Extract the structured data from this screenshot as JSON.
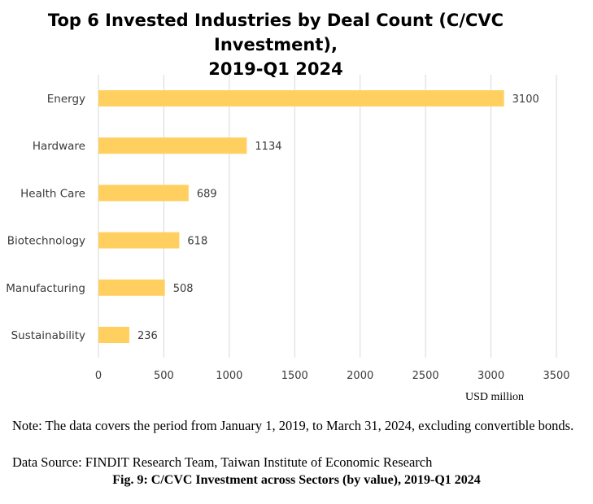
{
  "chart_data": {
    "type": "bar",
    "orientation": "horizontal",
    "title_lines": [
      "Top 6 Invested Industries by Deal Count (C/CVC Investment),",
      "2019-Q1 2024"
    ],
    "categories": [
      "Energy",
      "Hardware",
      "Health Care",
      "Biotechnology",
      "Manufacturing",
      "Sustainability"
    ],
    "values": [
      3100,
      1134,
      689,
      618,
      508,
      236
    ],
    "value_labels": [
      "3100",
      "1134",
      "689",
      "618",
      "508",
      "236"
    ],
    "x_ticks": [
      0,
      500,
      1000,
      1500,
      2000,
      2500,
      3000,
      3500
    ],
    "xlim": [
      0,
      3500
    ],
    "xlabel": "USD million",
    "ylabel": "",
    "grid": "vertical",
    "legend": "none",
    "bar_color": "#FFD05F",
    "grid_color": "#D9D9D9"
  },
  "note": "Note: The data covers the period from January 1, 2019, to March 31, 2024, excluding convertible bonds.",
  "source": "Data Source: FINDIT Research Team, Taiwan Institute of Economic Research",
  "figure_caption": "Fig. 9: C/CVC Investment across Sectors (by value), 2019-Q1 2024"
}
